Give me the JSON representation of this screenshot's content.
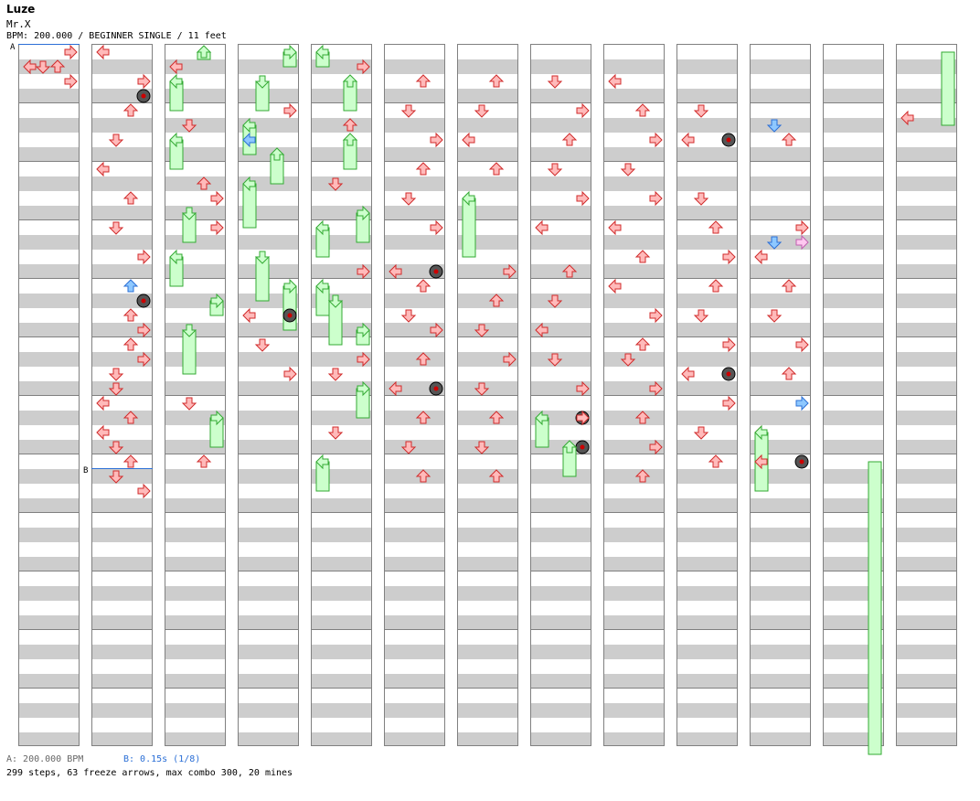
{
  "song": {
    "title": "Luze",
    "artist": "Mr.X",
    "info": "BPM: 200.000 / BEGINNER SINGLE / 11 feet"
  },
  "markers": {
    "a": "A",
    "b": "B"
  },
  "footer": {
    "bpm": "A: 200.000 BPM",
    "stop": "B: 0.15s (1/8)",
    "stats": "299 steps, 63 freeze arrows, max combo 300, 20 mines"
  },
  "colors": {
    "arrow_red": "#ffbaba",
    "arrow_red_stroke": "#d02b2b",
    "arrow_blue": "#8ec8ff",
    "arrow_blue_stroke": "#2b6fd6",
    "arrow_green": "#7fef7f",
    "arrow_green_stroke": "#15a015",
    "arrow_pink": "#ffc8f0",
    "freeze_fill": "#ccffcc",
    "freeze_stroke": "#33aa33",
    "mine_red": "#cc0000",
    "grid_gray": "#cdcdcd",
    "marker_blue": "#2b6fd6"
  },
  "chart": {
    "columns": 13,
    "rows_per_column": 48,
    "lanes": [
      "left",
      "down",
      "up",
      "right"
    ],
    "notes": [
      [
        0,
        "r",
        2
      ],
      [
        0,
        "u",
        1
      ],
      [
        0,
        "d",
        1
      ],
      [
        0,
        "l",
        1
      ],
      [
        0,
        "r",
        0
      ],
      [
        1,
        "l",
        0
      ],
      [
        1,
        "m",
        3
      ],
      [
        1,
        "r",
        2
      ],
      [
        1,
        "u",
        4
      ],
      [
        1,
        "d",
        6
      ],
      [
        1,
        "l",
        8
      ],
      [
        1,
        "u",
        10
      ],
      [
        1,
        "d",
        12
      ],
      [
        1,
        "r",
        14
      ],
      [
        1,
        "b",
        16
      ],
      [
        1,
        "m",
        17
      ],
      [
        1,
        "u",
        18
      ],
      [
        1,
        "r",
        19
      ],
      [
        1,
        "u",
        20
      ],
      [
        1,
        "r",
        21
      ],
      [
        1,
        "d",
        22
      ],
      [
        1,
        "d",
        23
      ],
      [
        1,
        "l",
        24
      ],
      [
        1,
        "u",
        25
      ],
      [
        1,
        "l",
        26
      ],
      [
        1,
        "d",
        27
      ],
      [
        1,
        "u",
        28
      ],
      [
        1,
        "d",
        29
      ],
      [
        1,
        "r",
        30
      ],
      [
        2,
        "f",
        0,
        0.5
      ],
      [
        2,
        "l",
        1
      ],
      [
        2,
        "f",
        2,
        4
      ],
      [
        2,
        "d",
        5
      ],
      [
        2,
        "f",
        6,
        8
      ],
      [
        2,
        "u",
        9
      ],
      [
        2,
        "r",
        10
      ],
      [
        2,
        "f",
        11,
        13
      ],
      [
        2,
        "r",
        12
      ],
      [
        2,
        "f",
        14,
        16
      ],
      [
        2,
        "f",
        17,
        18
      ],
      [
        2,
        "f",
        19,
        22
      ],
      [
        2,
        "d",
        24
      ],
      [
        2,
        "f",
        25,
        27
      ],
      [
        2,
        "u",
        28
      ],
      [
        3,
        "f",
        0,
        1
      ],
      [
        3,
        "f",
        2,
        4
      ],
      [
        3,
        "r",
        4
      ],
      [
        3,
        "f",
        5,
        7
      ],
      [
        3,
        "b",
        6
      ],
      [
        3,
        "f",
        7,
        9
      ],
      [
        3,
        "f",
        9,
        12
      ],
      [
        3,
        "f",
        14,
        17
      ],
      [
        3,
        "f",
        16,
        19
      ],
      [
        3,
        "l",
        18
      ],
      [
        3,
        "m",
        18
      ],
      [
        3,
        "d",
        20
      ],
      [
        3,
        "r",
        22
      ],
      [
        4,
        "f",
        0,
        1
      ],
      [
        4,
        "r",
        1
      ],
      [
        4,
        "f",
        2,
        4
      ],
      [
        4,
        "u",
        5
      ],
      [
        4,
        "f",
        6,
        8
      ],
      [
        4,
        "d",
        9
      ],
      [
        4,
        "f",
        11,
        13
      ],
      [
        4,
        "f",
        12,
        14
      ],
      [
        4,
        "r",
        15
      ],
      [
        4,
        "f",
        16,
        18
      ],
      [
        4,
        "f",
        17,
        20
      ],
      [
        4,
        "f",
        19,
        20
      ],
      [
        4,
        "r",
        21
      ],
      [
        4,
        "d",
        22
      ],
      [
        4,
        "f",
        23,
        25
      ],
      [
        4,
        "d",
        26
      ],
      [
        4,
        "f",
        28,
        30
      ],
      [
        5,
        "u",
        2
      ],
      [
        5,
        "d",
        4
      ],
      [
        5,
        "r",
        6
      ],
      [
        5,
        "u",
        8
      ],
      [
        5,
        "d",
        10
      ],
      [
        5,
        "r",
        12
      ],
      [
        5,
        "l",
        15
      ],
      [
        5,
        "m",
        15
      ],
      [
        5,
        "u",
        16
      ],
      [
        5,
        "d",
        18
      ],
      [
        5,
        "r",
        19
      ],
      [
        5,
        "u",
        21
      ],
      [
        5,
        "l",
        23
      ],
      [
        5,
        "m",
        23
      ],
      [
        5,
        "u",
        25
      ],
      [
        5,
        "d",
        27
      ],
      [
        5,
        "u",
        29
      ],
      [
        6,
        "u",
        2
      ],
      [
        6,
        "d",
        4
      ],
      [
        6,
        "l",
        6
      ],
      [
        6,
        "u",
        8
      ],
      [
        6,
        "f",
        10,
        14
      ],
      [
        6,
        "r",
        15
      ],
      [
        6,
        "u",
        17
      ],
      [
        6,
        "d",
        19
      ],
      [
        6,
        "r",
        21
      ],
      [
        6,
        "d",
        23
      ],
      [
        6,
        "u",
        25
      ],
      [
        6,
        "d",
        27
      ],
      [
        6,
        "u",
        29
      ],
      [
        7,
        "d",
        2
      ],
      [
        7,
        "r",
        4
      ],
      [
        7,
        "u",
        6
      ],
      [
        7,
        "d",
        8
      ],
      [
        7,
        "r",
        10
      ],
      [
        7,
        "l",
        12
      ],
      [
        7,
        "u",
        15
      ],
      [
        7,
        "d",
        17
      ],
      [
        7,
        "l",
        19
      ],
      [
        7,
        "d",
        21
      ],
      [
        7,
        "r",
        23
      ],
      [
        7,
        "f",
        25,
        27
      ],
      [
        7,
        "m",
        25
      ],
      [
        7,
        "r",
        25
      ],
      [
        7,
        "m",
        27
      ],
      [
        7,
        "f",
        27,
        29
      ],
      [
        8,
        "l",
        2
      ],
      [
        8,
        "u",
        4
      ],
      [
        8,
        "r",
        6
      ],
      [
        8,
        "d",
        8
      ],
      [
        8,
        "r",
        10
      ],
      [
        8,
        "l",
        12
      ],
      [
        8,
        "u",
        14
      ],
      [
        8,
        "l",
        16
      ],
      [
        8,
        "r",
        18
      ],
      [
        8,
        "u",
        20
      ],
      [
        8,
        "d",
        21
      ],
      [
        8,
        "r",
        23
      ],
      [
        8,
        "u",
        25
      ],
      [
        8,
        "r",
        27
      ],
      [
        8,
        "u",
        29
      ],
      [
        9,
        "d",
        4
      ],
      [
        9,
        "l",
        6
      ],
      [
        9,
        "m",
        6
      ],
      [
        9,
        "d",
        10
      ],
      [
        9,
        "u",
        12
      ],
      [
        9,
        "r",
        14
      ],
      [
        9,
        "u",
        16
      ],
      [
        9,
        "d",
        18
      ],
      [
        9,
        "r",
        20
      ],
      [
        9,
        "l",
        22
      ],
      [
        9,
        "m",
        22
      ],
      [
        9,
        "r",
        24
      ],
      [
        9,
        "d",
        26
      ],
      [
        9,
        "u",
        28
      ],
      [
        10,
        "b",
        5
      ],
      [
        10,
        "u",
        6
      ],
      [
        10,
        "r",
        12
      ],
      [
        10,
        "p",
        13
      ],
      [
        10,
        "b",
        13
      ],
      [
        10,
        "l",
        14
      ],
      [
        10,
        "u",
        16
      ],
      [
        10,
        "d",
        18
      ],
      [
        10,
        "r",
        20
      ],
      [
        10,
        "u",
        22
      ],
      [
        10,
        "b",
        24
      ],
      [
        10,
        "l",
        26
      ],
      [
        10,
        "f",
        26,
        30
      ],
      [
        10,
        "l",
        28
      ],
      [
        10,
        "m",
        28
      ]
    ]
  }
}
